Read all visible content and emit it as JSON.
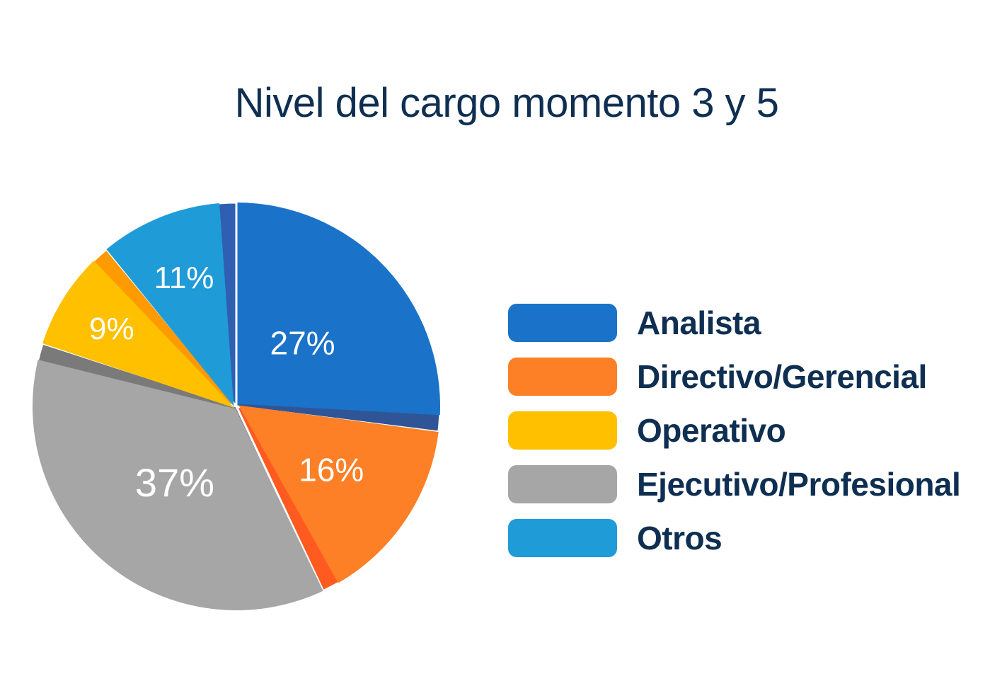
{
  "chart_data": {
    "type": "pie",
    "title": "Nivel del cargo momento 3 y 5",
    "slices": [
      {
        "name": "Analista",
        "value": 27,
        "label": "27%",
        "color": "#1a73c8",
        "shade": "#2f5597"
      },
      {
        "name": "Directivo/Gerencial",
        "value": 16,
        "label": "16%",
        "color": "#fd7f26",
        "shade": "#ff5a1f"
      },
      {
        "name": "Ejecutivo/Profesional",
        "value": 37,
        "label": "37%",
        "color": "#a6a6a6",
        "shade": "#7a7a7a"
      },
      {
        "name": "Operativo",
        "value": 9,
        "label": "9%",
        "color": "#ffc000",
        "shade": "#ff9a00"
      },
      {
        "name": "Otros",
        "value": 11,
        "label": "11%",
        "color": "#1f9bd8",
        "shade": "#2f5fb0"
      }
    ],
    "legend": {
      "placement": "right",
      "entries": [
        "Analista",
        "Directivo/Gerencial",
        "Operativo",
        "Ejecutivo/Profesional",
        "Otros"
      ]
    }
  }
}
